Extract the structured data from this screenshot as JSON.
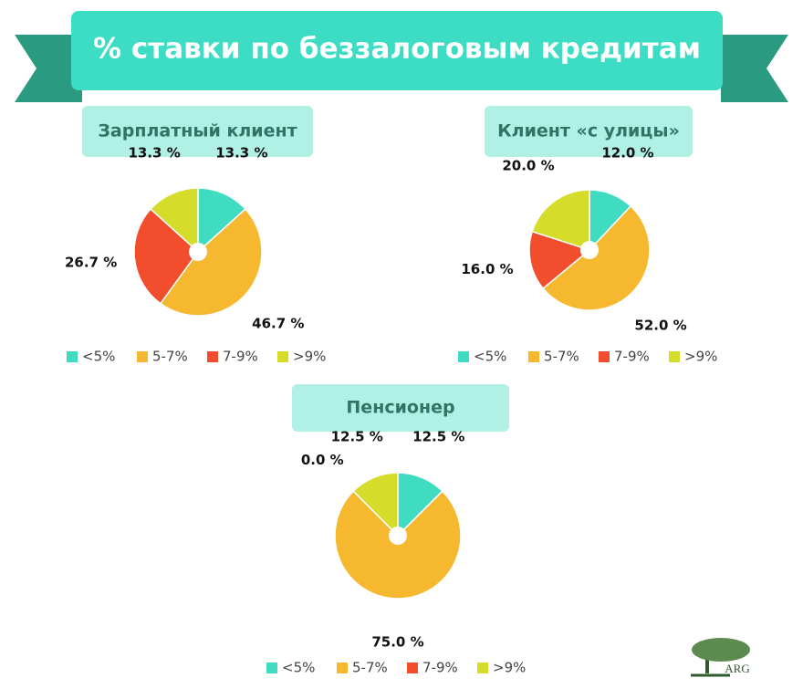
{
  "title": "% ставки по беззалоговым кредитам",
  "logo": "ARG",
  "chart_data": [
    {
      "type": "pie",
      "title": "Зарплатный клиент",
      "categories": [
        "<5%",
        "5-7%",
        "7-9%",
        ">9%"
      ],
      "values": [
        13.3,
        46.7,
        26.7,
        13.3
      ],
      "value_labels": [
        "13.3 %",
        "46.7 %",
        "26.7 %",
        "13.3 %"
      ],
      "colors": [
        "#3fdcc2",
        "#f5b82e",
        "#f24e2e",
        "#d6dc2a"
      ]
    },
    {
      "type": "pie",
      "title": "Клиент «с улицы»",
      "categories": [
        "<5%",
        "5-7%",
        "7-9%",
        ">9%"
      ],
      "values": [
        12.0,
        52.0,
        16.0,
        20.0
      ],
      "value_labels": [
        "12.0 %",
        "52.0 %",
        "16.0 %",
        "20.0 %"
      ],
      "colors": [
        "#3fdcc2",
        "#f5b82e",
        "#f24e2e",
        "#d6dc2a"
      ]
    },
    {
      "type": "pie",
      "title": "Пенсионер",
      "categories": [
        "<5%",
        "5-7%",
        "7-9%",
        ">9%"
      ],
      "values": [
        12.5,
        75.0,
        0.0,
        12.5
      ],
      "value_labels": [
        "12.5 %",
        "75.0 %",
        "0.0 %",
        "12.5 %"
      ],
      "colors": [
        "#3fdcc2",
        "#f5b82e",
        "#f24e2e",
        "#d6dc2a"
      ]
    }
  ]
}
